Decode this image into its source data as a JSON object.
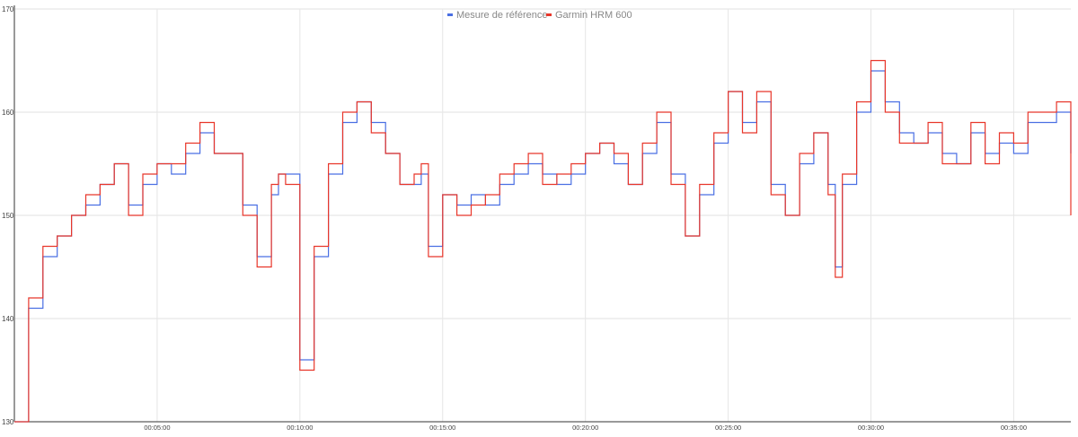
{
  "chart_data": {
    "type": "line",
    "title": "",
    "xlabel": "",
    "ylabel": "",
    "ylim": [
      130,
      170
    ],
    "xlim": [
      "00:00:00",
      "00:37:00"
    ],
    "grid": true,
    "legend_position": "top-center",
    "y_ticks": [
      "130",
      "140",
      "150",
      "160",
      "170"
    ],
    "x_ticks": [
      "00:05:00",
      "00:10:00",
      "00:15:00",
      "00:20:00",
      "00:25:00",
      "00:30:00",
      "00:35:00"
    ],
    "series": [
      {
        "name": "Mesure de référence",
        "color": "#4a6fe3",
        "x": [
          "00:00:00",
          "00:00:30",
          "00:01:00",
          "00:01:30",
          "00:02:00",
          "00:02:30",
          "00:03:00",
          "00:03:30",
          "00:04:00",
          "00:04:30",
          "00:05:00",
          "00:05:30",
          "00:06:00",
          "00:06:30",
          "00:07:00",
          "00:07:30",
          "00:08:00",
          "00:08:30",
          "00:09:00",
          "00:09:15",
          "00:09:30",
          "00:10:00",
          "00:10:30",
          "00:11:00",
          "00:11:30",
          "00:12:00",
          "00:12:30",
          "00:13:00",
          "00:13:30",
          "00:14:00",
          "00:14:15",
          "00:14:30",
          "00:15:00",
          "00:15:30",
          "00:16:00",
          "00:16:30",
          "00:17:00",
          "00:17:30",
          "00:18:00",
          "00:18:30",
          "00:19:00",
          "00:19:30",
          "00:20:00",
          "00:20:30",
          "00:21:00",
          "00:21:30",
          "00:22:00",
          "00:22:30",
          "00:23:00",
          "00:23:30",
          "00:24:00",
          "00:24:30",
          "00:25:00",
          "00:25:30",
          "00:26:00",
          "00:26:30",
          "00:27:00",
          "00:27:30",
          "00:28:00",
          "00:28:30",
          "00:28:45",
          "00:29:00",
          "00:29:30",
          "00:30:00",
          "00:30:30",
          "00:31:00",
          "00:31:30",
          "00:32:00",
          "00:32:30",
          "00:33:00",
          "00:33:30",
          "00:34:00",
          "00:34:30",
          "00:35:00",
          "00:35:30",
          "00:36:00",
          "00:36:30",
          "00:37:00"
        ],
        "values": [
          130,
          141,
          146,
          148,
          150,
          151,
          153,
          155,
          151,
          153,
          155,
          154,
          156,
          158,
          156,
          156,
          151,
          146,
          152,
          154,
          154,
          136,
          146,
          154,
          159,
          161,
          159,
          156,
          153,
          153,
          154,
          147,
          152,
          151,
          152,
          151,
          153,
          154,
          155,
          154,
          153,
          154,
          156,
          157,
          155,
          153,
          156,
          159,
          154,
          148,
          152,
          157,
          162,
          159,
          161,
          153,
          150,
          155,
          158,
          153,
          145,
          153,
          160,
          164,
          161,
          158,
          157,
          158,
          156,
          155,
          158,
          156,
          157,
          156,
          159,
          159,
          160,
          156
        ]
      },
      {
        "name": "Garmin HRM 600",
        "color": "#e8362a",
        "x": [
          "00:00:00",
          "00:00:30",
          "00:01:00",
          "00:01:30",
          "00:02:00",
          "00:02:30",
          "00:03:00",
          "00:03:30",
          "00:04:00",
          "00:04:30",
          "00:05:00",
          "00:05:30",
          "00:06:00",
          "00:06:30",
          "00:07:00",
          "00:07:30",
          "00:08:00",
          "00:08:30",
          "00:09:00",
          "00:09:15",
          "00:09:30",
          "00:10:00",
          "00:10:30",
          "00:11:00",
          "00:11:30",
          "00:12:00",
          "00:12:30",
          "00:13:00",
          "00:13:30",
          "00:14:00",
          "00:14:15",
          "00:14:30",
          "00:15:00",
          "00:15:30",
          "00:16:00",
          "00:16:30",
          "00:17:00",
          "00:17:30",
          "00:18:00",
          "00:18:30",
          "00:19:00",
          "00:19:30",
          "00:20:00",
          "00:20:30",
          "00:21:00",
          "00:21:30",
          "00:22:00",
          "00:22:30",
          "00:23:00",
          "00:23:30",
          "00:24:00",
          "00:24:30",
          "00:25:00",
          "00:25:30",
          "00:26:00",
          "00:26:30",
          "00:27:00",
          "00:27:30",
          "00:28:00",
          "00:28:30",
          "00:28:45",
          "00:29:00",
          "00:29:30",
          "00:30:00",
          "00:30:30",
          "00:31:00",
          "00:31:30",
          "00:32:00",
          "00:32:30",
          "00:33:00",
          "00:33:30",
          "00:34:00",
          "00:34:30",
          "00:35:00",
          "00:35:30",
          "00:36:00",
          "00:36:30",
          "00:37:00"
        ],
        "values": [
          130,
          142,
          147,
          148,
          150,
          152,
          153,
          155,
          150,
          154,
          155,
          155,
          157,
          159,
          156,
          156,
          150,
          145,
          153,
          154,
          153,
          135,
          147,
          155,
          160,
          161,
          158,
          156,
          153,
          154,
          155,
          146,
          152,
          150,
          151,
          152,
          154,
          155,
          156,
          153,
          154,
          155,
          156,
          157,
          156,
          153,
          157,
          160,
          153,
          148,
          153,
          158,
          162,
          158,
          162,
          152,
          150,
          156,
          158,
          152,
          144,
          154,
          161,
          165,
          160,
          157,
          157,
          159,
          155,
          155,
          159,
          155,
          158,
          157,
          160,
          160,
          161,
          150
        ]
      }
    ]
  }
}
